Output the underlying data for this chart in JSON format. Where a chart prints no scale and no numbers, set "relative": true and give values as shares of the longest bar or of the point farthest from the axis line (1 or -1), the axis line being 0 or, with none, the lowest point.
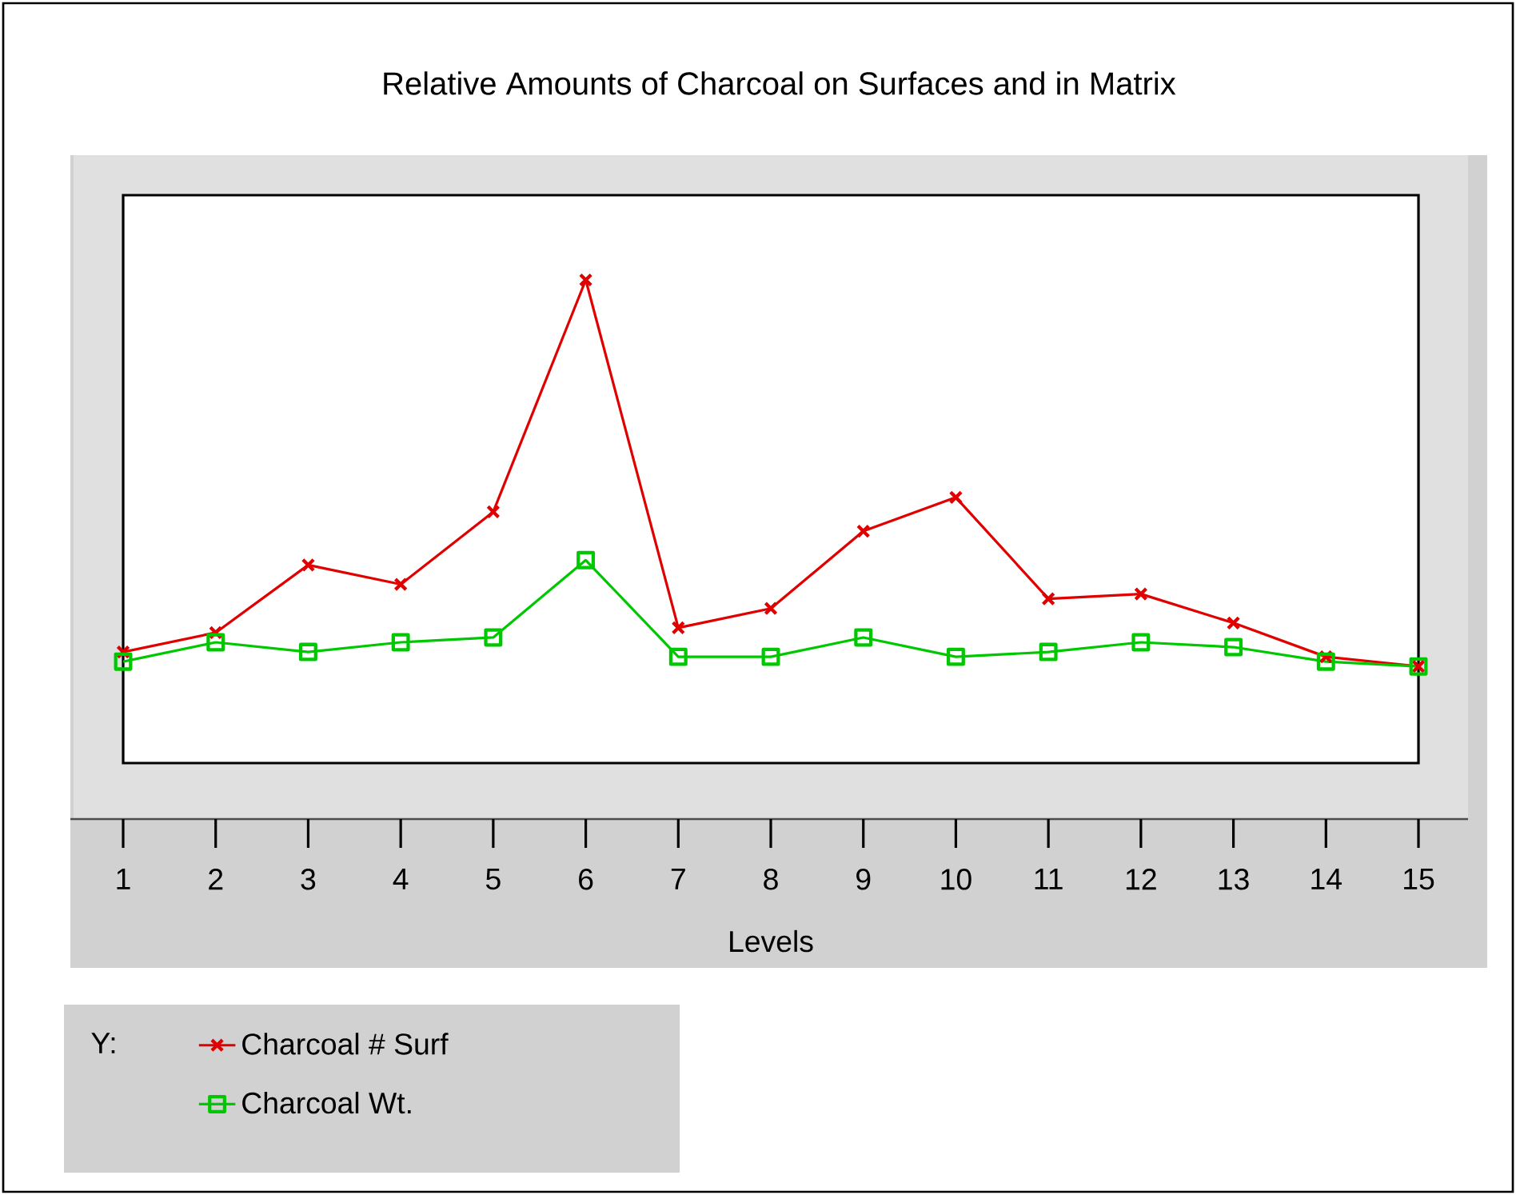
{
  "chart_data": {
    "type": "line",
    "title": "Relative Amounts of Charcoal on Surfaces and in Matrix",
    "xlabel": "Levels",
    "legend_title": "Y:",
    "legend": "bottom left",
    "relative": true,
    "grid": false,
    "categories": [
      "1",
      "2",
      "3",
      "4",
      "5",
      "6",
      "7",
      "8",
      "9",
      "10",
      "11",
      "12",
      "13",
      "14",
      "15"
    ],
    "series": [
      {
        "name": "Charcoal # Surf",
        "color": "#e00000",
        "marker": "cross",
        "values": [
          0.23,
          0.27,
          0.41,
          0.37,
          0.52,
          1,
          0.28,
          0.32,
          0.48,
          0.55,
          0.34,
          0.35,
          0.29,
          0.22,
          0.2
        ]
      },
      {
        "name": "Charcoal Wt.",
        "color": "#00c800",
        "marker": "square",
        "values": [
          0.21,
          0.25,
          0.23,
          0.25,
          0.26,
          0.42,
          0.22,
          0.22,
          0.26,
          0.22,
          0.23,
          0.25,
          0.24,
          0.21,
          0.2
        ]
      }
    ]
  }
}
